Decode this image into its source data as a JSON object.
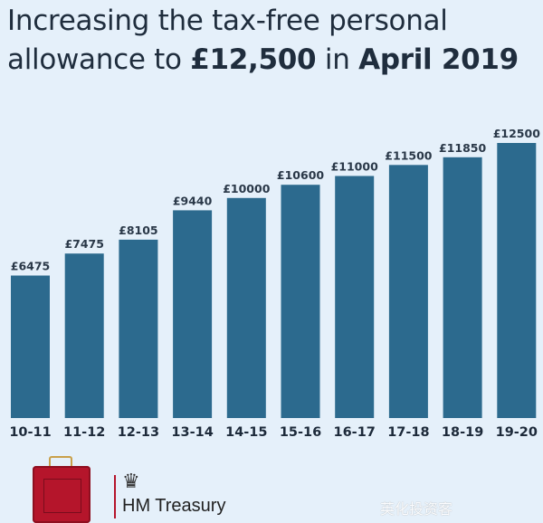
{
  "title": {
    "line1": "Increasing the tax-free personal",
    "line2_prefix": "allowance to ",
    "line2_amount": "£12,500",
    "line2_mid": " in ",
    "line2_date": "April 2019"
  },
  "chart_data": {
    "type": "bar",
    "categories": [
      "10-11",
      "11-12",
      "12-13",
      "13-14",
      "14-15",
      "15-16",
      "16-17",
      "17-18",
      "18-19",
      "19-20"
    ],
    "values": [
      6475,
      7475,
      8105,
      9440,
      10000,
      10600,
      11000,
      11500,
      11850,
      12500
    ],
    "data_labels": [
      "£6475",
      "£7475",
      "£8105",
      "£9440",
      "£10000",
      "£10600",
      "£11000",
      "£11500",
      "£11850",
      "£12500"
    ],
    "ylim": [
      0,
      12500
    ],
    "grid": false,
    "bar_color": "#2c6a8e",
    "background": "#e5f0fa"
  },
  "footer": {
    "logo_text": "HM Treasury",
    "watermark": "英化投资客",
    "case_color": "#b5152b"
  }
}
